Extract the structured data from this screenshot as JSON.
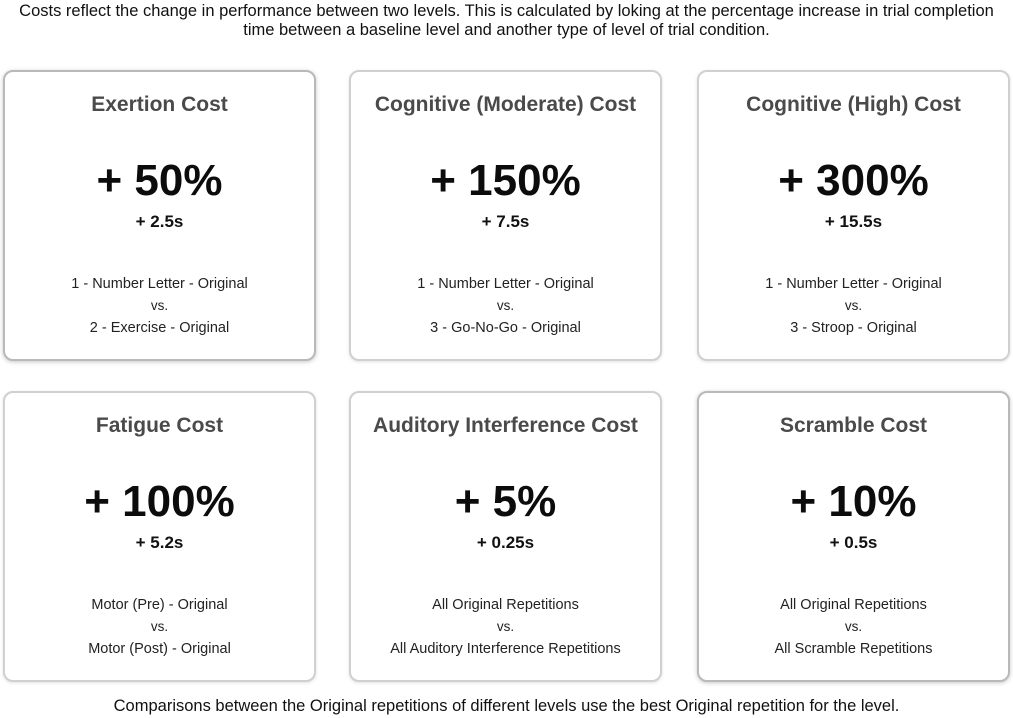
{
  "header": {
    "line1": "Costs reflect the change in performance between two levels.  This is calculated by loking at the percentage increase in trial completion",
    "line2": "time between a baseline level and another type of level of trial condition."
  },
  "cards": [
    {
      "title": "Exertion Cost",
      "percent": "+ 50%",
      "time": "+ 2.5s",
      "baseline": "1 - Number Letter - Original",
      "vs": "vs.",
      "comparison": "2 - Exercise - Original"
    },
    {
      "title": "Cognitive (Moderate) Cost",
      "percent": "+ 150%",
      "time": "+ 7.5s",
      "baseline": "1 - Number Letter - Original",
      "vs": "vs.",
      "comparison": "3 - Go-No-Go - Original"
    },
    {
      "title": "Cognitive (High) Cost",
      "percent": "+ 300%",
      "time": "+ 15.5s",
      "baseline": "1 - Number Letter - Original",
      "vs": "vs.",
      "comparison": "3 - Stroop - Original"
    },
    {
      "title": "Fatigue Cost",
      "percent": "+ 100%",
      "time": "+ 5.2s",
      "baseline": "Motor (Pre) - Original",
      "vs": "vs.",
      "comparison": "Motor (Post) - Original"
    },
    {
      "title": "Auditory Interference Cost",
      "percent": "+ 5%",
      "time": "+ 0.25s",
      "baseline": "All Original Repetitions",
      "vs": "vs.",
      "comparison": "All Auditory Interference Repetitions"
    },
    {
      "title": "Scramble Cost",
      "percent": "+ 10%",
      "time": "+ 0.5s",
      "baseline": "All Original Repetitions",
      "vs": "vs.",
      "comparison": "All Scramble Repetitions"
    }
  ],
  "footer": {
    "note": "Comparisons between the Original repetitions of different levels use the best Original repetition for the level."
  }
}
